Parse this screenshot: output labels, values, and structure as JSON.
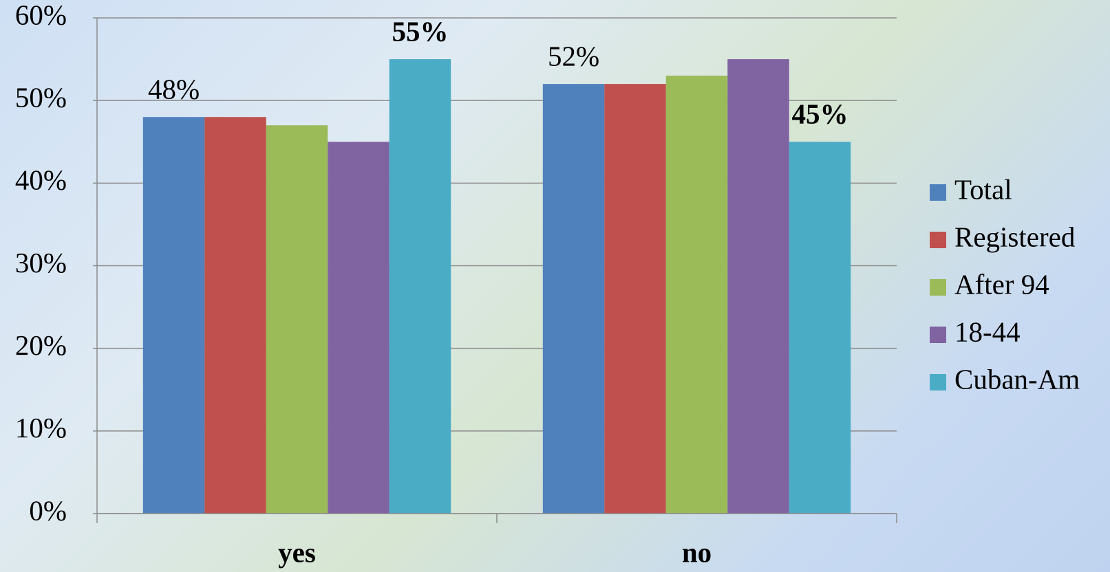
{
  "chart_data": {
    "type": "bar",
    "categories": [
      "yes",
      "no"
    ],
    "series": [
      {
        "name": "Total",
        "color": "#4f81bd",
        "values": [
          48,
          52
        ],
        "value_labels": [
          "48%",
          "52%"
        ]
      },
      {
        "name": "Registered",
        "color": "#c0504d",
        "values": [
          48,
          52
        ]
      },
      {
        "name": "After 94",
        "color": "#9bbb59",
        "values": [
          47,
          53
        ]
      },
      {
        "name": "18-44",
        "color": "#8064a2",
        "values": [
          45,
          55
        ]
      },
      {
        "name": "Cuban-Am",
        "color": "#4bacc6",
        "values": [
          55,
          45
        ],
        "value_labels": [
          "55%",
          "45%"
        ]
      }
    ],
    "ylim": [
      0,
      60
    ],
    "yticks": [
      {
        "value": 0,
        "label": "0%"
      },
      {
        "value": 10,
        "label": "10%"
      },
      {
        "value": 20,
        "label": "20%"
      },
      {
        "value": 30,
        "label": "30%"
      },
      {
        "value": 40,
        "label": "40%"
      },
      {
        "value": 50,
        "label": "50%"
      },
      {
        "value": 60,
        "label": "60%"
      }
    ],
    "grid": true,
    "legend": "right"
  }
}
